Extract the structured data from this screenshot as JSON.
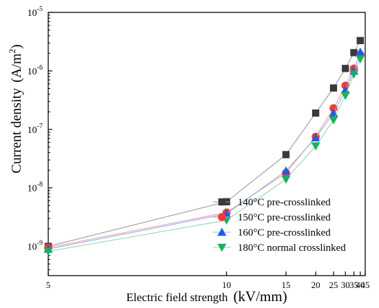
{
  "chart_data": {
    "type": "line",
    "xlabel_main": "Electric field strength",
    "xlabel_unit": "(kV/mm)",
    "ylabel_main": "Current density",
    "ylabel_unit": "(A/m",
    "ylabel_unit_sup": "2",
    "ylabel_unit_close": ")",
    "x_scale": "reciprocal",
    "y_scale": "log",
    "xlim": [
      5,
      45
    ],
    "ylim_exp": [
      -9.5,
      -5
    ],
    "x_ticks": [
      5,
      10,
      15,
      20,
      25,
      30,
      35,
      40,
      45
    ],
    "x_tick_labels": [
      "5",
      "10",
      "15",
      "20",
      "25",
      "30",
      "35",
      "40",
      "45"
    ],
    "y_tick_exponents": [
      -9,
      -8,
      -7,
      -6,
      -5
    ],
    "y_tick_base": "10",
    "legend_position": "bottom-right",
    "grid": false,
    "x": [
      5,
      10,
      15,
      20,
      25,
      30,
      35,
      40
    ],
    "series": [
      {
        "name": "140°C pre-crosslinked",
        "marker": "square",
        "color": "#3a3a3a",
        "line_color": "#9a9a9a",
        "values": [
          1e-09,
          5.8e-09,
          3.7e-08,
          1.9e-07,
          5.1e-07,
          1.1e-06,
          2.05e-06,
          3.3e-06
        ]
      },
      {
        "name": "150°C pre-crosslinked",
        "marker": "circle",
        "color": "#ee3b3b",
        "line_color": "#f4a0a0",
        "values": [
          9.5e-10,
          3.8e-09,
          1.8e-08,
          7.5e-08,
          2.3e-07,
          5.6e-07,
          1.1e-06,
          1.9e-06
        ]
      },
      {
        "name": "160°C pre-crosslinked",
        "marker": "triangle-up",
        "color": "#1e5fe0",
        "line_color": "#8fb0f0",
        "values": [
          9e-10,
          3.6e-09,
          1.95e-08,
          7.2e-08,
          1.9e-07,
          4.7e-07,
          1e-06,
          2.1e-06
        ]
      },
      {
        "name": "180°C normal crosslinked",
        "marker": "triangle-down",
        "color": "#1fae5c",
        "line_color": "#8fd8aa",
        "values": [
          8.2e-10,
          2.8e-09,
          1.4e-08,
          5.2e-08,
          1.45e-07,
          3.8e-07,
          8.8e-07,
          1.6e-06
        ]
      }
    ]
  }
}
